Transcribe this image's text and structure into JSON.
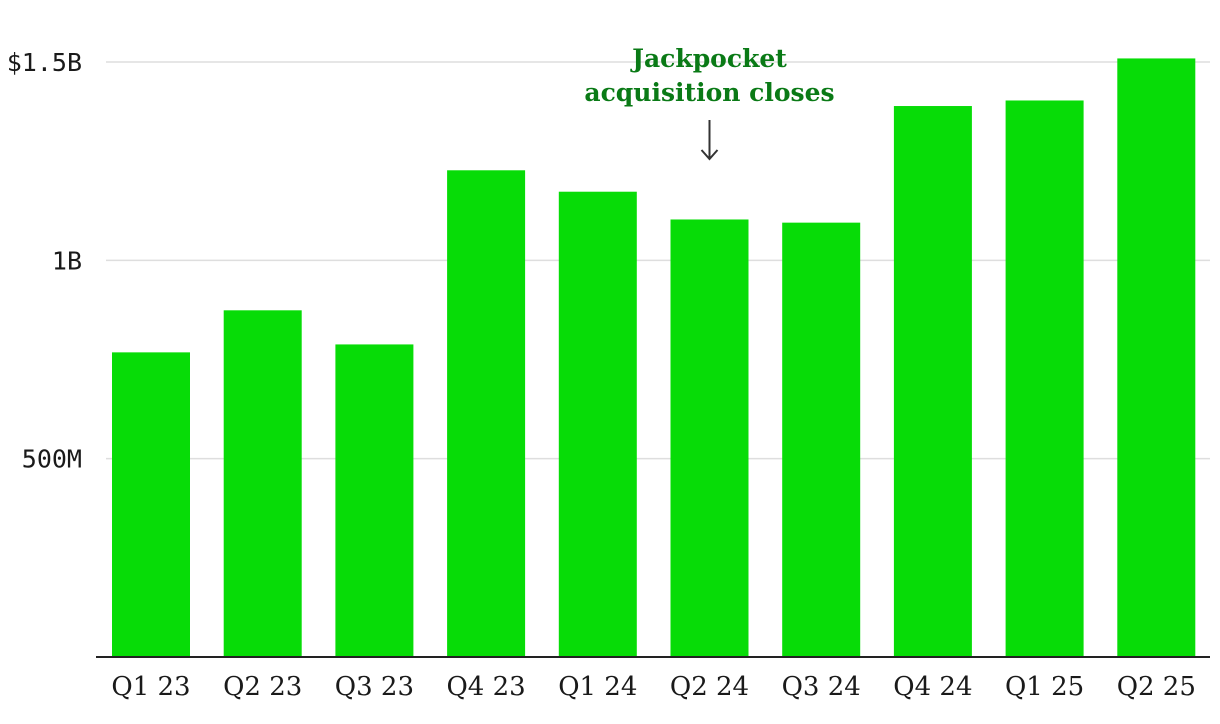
{
  "chart_data": {
    "type": "bar",
    "title": "",
    "xlabel": "",
    "ylabel": "",
    "categories": [
      "Q1 23",
      "Q2 23",
      "Q3 23",
      "Q4 23",
      "Q1 24",
      "Q2 24",
      "Q3 24",
      "Q4 24",
      "Q1 25",
      "Q2 25"
    ],
    "values": [
      768000000,
      874000000,
      788000000,
      1227000000,
      1173000000,
      1103000000,
      1095000000,
      1389000000,
      1403000000,
      1509000000
    ],
    "ylim": [
      0,
      1500000000
    ],
    "yticks": [
      {
        "value": 500000000,
        "label": "500M"
      },
      {
        "value": 1000000000,
        "label": "1B"
      },
      {
        "value": 1500000000,
        "label": "$1.5B"
      }
    ],
    "grid": true,
    "bar_color": "#07dc07",
    "annotation": {
      "lines": [
        "Jackpocket",
        "acquisition closes"
      ],
      "category": "Q2 24",
      "color": "#0a7a16"
    }
  }
}
